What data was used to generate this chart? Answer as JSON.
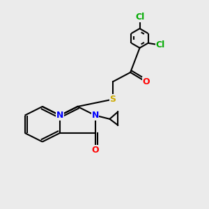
{
  "bg_color": "#ebebeb",
  "bond_color": "#000000",
  "bond_width": 1.5,
  "atom_colors": {
    "N": "#0000ff",
    "O": "#ff0000",
    "S": "#ccaa00",
    "Cl": "#00aa00",
    "C": "#000000"
  },
  "font_size": 9,
  "label_font_size": 9
}
